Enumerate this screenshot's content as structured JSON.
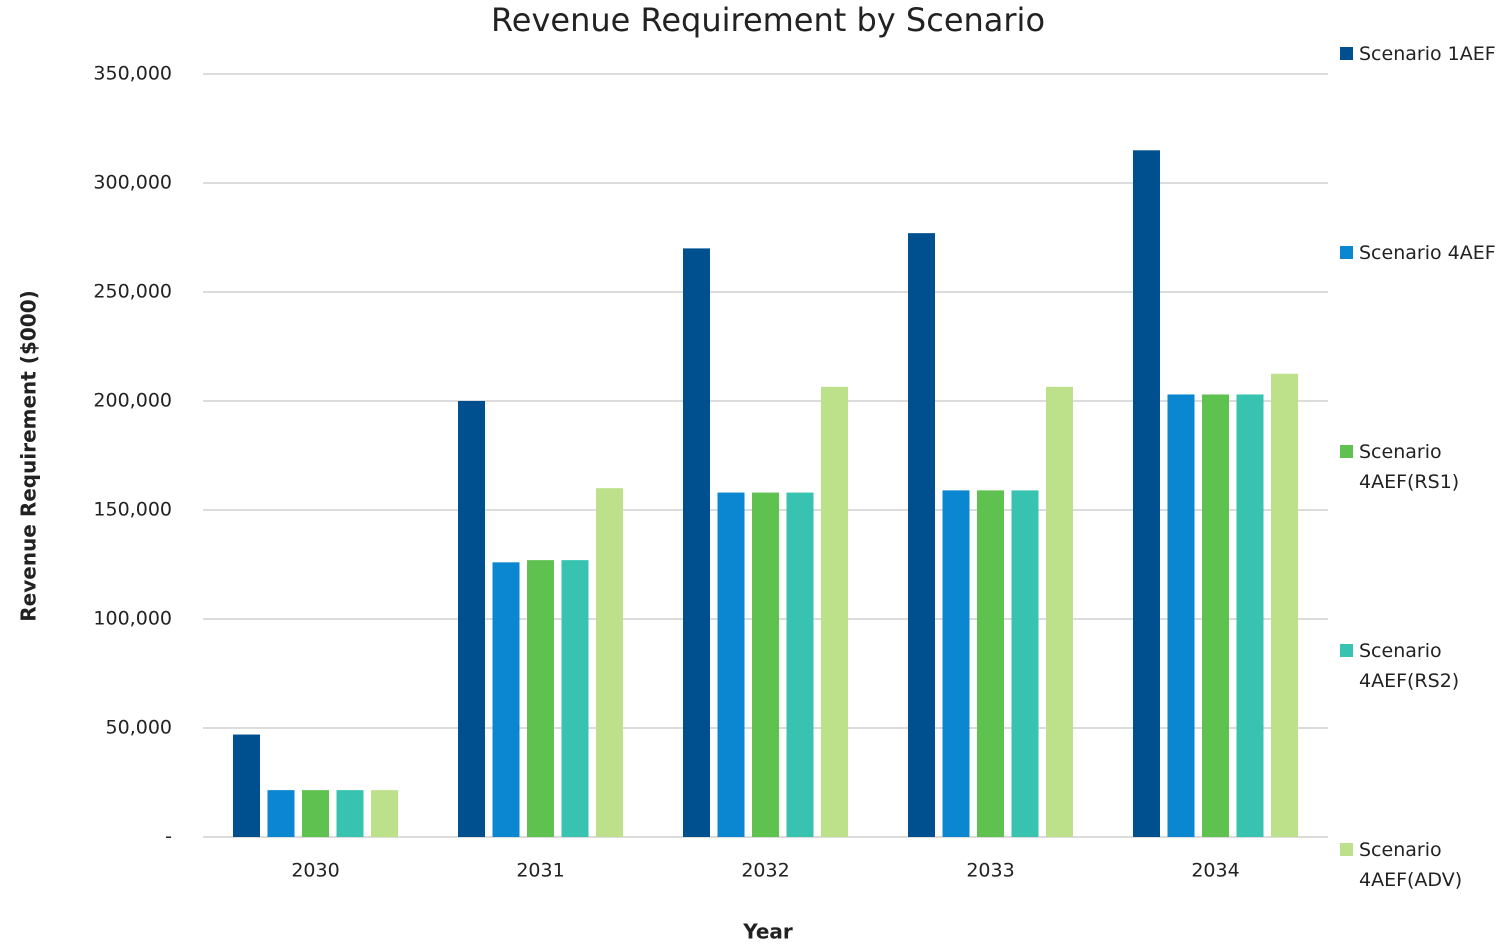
{
  "chart_data": {
    "type": "bar",
    "title": "Revenue Requirement by Scenario",
    "x_label": "Year",
    "y_label": "Revenue Requirement ($000)",
    "categories": [
      "2030",
      "2031",
      "2032",
      "2033",
      "2034"
    ],
    "series": [
      {
        "name": "Scenario 1AEF",
        "color": "#004f8f",
        "values": [
          47000,
          200000,
          270000,
          277000,
          315000
        ]
      },
      {
        "name": "Scenario 4AEF",
        "color": "#0a87d0",
        "values": [
          21500,
          126000,
          158000,
          159000,
          203000
        ]
      },
      {
        "name": "Scenario 4AEF(RS1)",
        "color": "#5fc150",
        "values": [
          21500,
          127000,
          158000,
          159000,
          203000
        ]
      },
      {
        "name": "Scenario 4AEF(RS2)",
        "color": "#38c3b0",
        "values": [
          21500,
          127000,
          158000,
          159000,
          203000
        ]
      },
      {
        "name": "Scenario 4AEF(ADV)",
        "color": "#bde08a",
        "values": [
          21500,
          160000,
          206500,
          206500,
          212500
        ]
      }
    ],
    "ylim": [
      0,
      350000
    ],
    "yticks": [
      {
        "value": 0,
        "label": "-"
      },
      {
        "value": 50000,
        "label": "50,000"
      },
      {
        "value": 100000,
        "label": "100,000"
      },
      {
        "value": 150000,
        "label": "150,000"
      },
      {
        "value": 200000,
        "label": "200,000"
      },
      {
        "value": 250000,
        "label": "250,000"
      },
      {
        "value": 300000,
        "label": "300,000"
      },
      {
        "value": 350000,
        "label": "350,000"
      }
    ],
    "grid": true,
    "legend": "right"
  }
}
